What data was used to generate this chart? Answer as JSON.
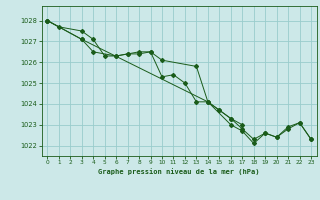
{
  "title": "Graphe pression niveau de la mer (hPa)",
  "bg_color": "#cce8e8",
  "grid_color": "#99cccc",
  "line_color": "#1a5c1a",
  "marker_color": "#1a5c1a",
  "xlim": [
    -0.5,
    23.5
  ],
  "ylim": [
    1021.5,
    1028.7
  ],
  "yticks": [
    1022,
    1023,
    1024,
    1025,
    1026,
    1027,
    1028
  ],
  "xticks": [
    0,
    1,
    2,
    3,
    4,
    5,
    6,
    7,
    8,
    9,
    10,
    11,
    12,
    13,
    14,
    15,
    16,
    17,
    18,
    19,
    20,
    21,
    22,
    23
  ],
  "series1_x": [
    0,
    1,
    3,
    4,
    5,
    6,
    7,
    8,
    9,
    10,
    13,
    14,
    16,
    17,
    18,
    19,
    20,
    21,
    22,
    23
  ],
  "series1_y": [
    1028.0,
    1027.7,
    1027.5,
    1027.1,
    1026.3,
    1026.3,
    1026.4,
    1026.4,
    1026.5,
    1026.1,
    1025.8,
    1024.1,
    1023.0,
    1022.7,
    1022.1,
    1022.6,
    1022.4,
    1022.8,
    1023.1,
    1022.3
  ],
  "series2_x": [
    0,
    3,
    4,
    6,
    7,
    8,
    9,
    10,
    11,
    12,
    13,
    14,
    15,
    16,
    17
  ],
  "series2_y": [
    1028.0,
    1027.1,
    1026.5,
    1026.3,
    1026.4,
    1026.5,
    1026.5,
    1025.3,
    1025.4,
    1025.0,
    1024.1,
    1024.1,
    1023.7,
    1023.3,
    1023.0
  ],
  "series3_x": [
    0,
    3,
    14,
    15,
    16,
    17,
    18,
    19,
    20,
    21,
    22,
    23
  ],
  "series3_y": [
    1028.0,
    1027.1,
    1024.1,
    1023.7,
    1023.3,
    1022.8,
    1022.3,
    1022.6,
    1022.4,
    1022.9,
    1023.1,
    1022.3
  ]
}
